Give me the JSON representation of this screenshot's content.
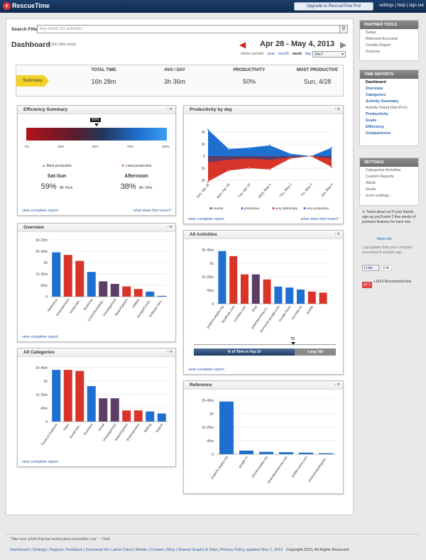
{
  "app": {
    "name": "RescueTime",
    "upgrade": "Upgrade to RescueTime Pro!",
    "toplinks": "settings | help | sign out"
  },
  "search": {
    "label": "Search Filter",
    "placeholder": "key words for activities"
  },
  "dashboard": {
    "title": "Dashboard",
    "subtitle": "(16h 28m total)",
    "date_range": "Apr 28 - May 4, 2013",
    "show_current": "show current:",
    "periods": [
      "year",
      "month",
      "week",
      "day"
    ],
    "range": "24x7"
  },
  "summary": {
    "tag": "Summary",
    "headers": [
      "TOTAL TIME",
      "AVG / DAY",
      "PRODUCTIVITY",
      "MOST PRODUCTIVE"
    ],
    "values": [
      "16h 28m",
      "3h 36m",
      "50%",
      "Sun, 4/28"
    ]
  },
  "efficiency": {
    "title": "Efficiency Summary",
    "marker": "50%",
    "ticks": [
      "0%",
      "25%",
      "50%",
      "75%",
      "100%"
    ],
    "most_label": "Most productive",
    "least_label": "Least productive",
    "most_day": "Sat-Sun",
    "most_pct": "59%",
    "most_time": "8h 41m",
    "least_day": "Afternoon",
    "least_pct": "38%",
    "least_time": "8h 16m",
    "foot": "view complete report",
    "foot2": "what does this mean?"
  },
  "productivity": {
    "title": "Productivity by day",
    "legend": [
      "neutral",
      "productive",
      "very distracting",
      "very productive"
    ],
    "foot": "view complete report",
    "foot2": "what does this mean?"
  },
  "overview": {
    "title": "Overview",
    "foot": "view complete report"
  },
  "categories": {
    "title": "All Categories",
    "foot": "view complete report"
  },
  "activities": {
    "title": "All Activities",
    "top10": "% of Time in Top 10",
    "long_tail": "Long Tail",
    "marker": "72",
    "ticks": [
      "0",
      "25",
      "50",
      "75",
      "100"
    ],
    "foot": "view complete report"
  },
  "reference": {
    "title": "Reference"
  },
  "sidebar": {
    "partner_title": "PARTNER TOOLS",
    "partner": [
      "Setup",
      "Referred Accounts",
      "Credits Report",
      "Invoices"
    ],
    "reports_title": "TIME REPORTS",
    "reports": [
      "Dashboard",
      "Overview",
      "Categories",
      "Activity Summary",
      "Activity Detail (Get Pro!)",
      "Productivity",
      "Goals",
      "Efficiency",
      "Comparisons"
    ],
    "settings_title": "SETTINGS",
    "settings": [
      "Categorize Activities",
      "Custom Reports",
      "Alerts",
      "Goals",
      "more settings..."
    ],
    "tweet": "Tweet about us! If your friends sign up you'll earn 2 free weeks of premium features for each one.",
    "more_info": "More info",
    "updated": "Last update from your computer processed 8 minutes ago.",
    "like": "Like",
    "like_count": "3.3k",
    "gplus_count": "+1914",
    "recommend": "Recommend this"
  },
  "footer": {
    "quote": "\"Take rest; a field that has rested gives a bountiful crop.\" ~ Ovid",
    "links": "Dashboard | Settings | Support, Feedback | Download the Latest Client | Mobile | Contact | Blog | Shared Graphs & Data | Privacy Policy updated May 1, 2013",
    "copyright": "Copyright 2013, All Rights Reserved"
  },
  "colors": {
    "vp": "#1f6fd1",
    "p": "#1f6fd1",
    "n": "#5b3d66",
    "d": "#d8342a",
    "vd": "#c8281f"
  },
  "chart_data": [
    {
      "id": "overview",
      "type": "bar",
      "title": "Overview",
      "categories": [
        "Reference",
        "Entertainment",
        "Social Net...",
        "Business",
        "Comm/Schedule...",
        "Uncategorized",
        "News/Opinion",
        "Utilities",
        "Design/Comp...",
        "Software Dev..."
      ],
      "values": [
        2.6,
        2.45,
        2.1,
        1.45,
        0.9,
        0.75,
        0.6,
        0.45,
        0.3,
        0.05
      ],
      "classes": [
        "vp",
        "d",
        "d",
        "vp",
        "n",
        "n",
        "d",
        "d",
        "vp",
        "vp"
      ],
      "ylabels": [
        "0",
        "40m",
        "1h 20m",
        "2h",
        "2h 40m",
        "3h 20m"
      ],
      "ymax": 3.33
    },
    {
      "id": "categories",
      "type": "bar",
      "title": "All Categories",
      "categories": [
        "Travel & Outdoors",
        "Video",
        "Social Net...",
        "Business",
        "Email",
        "Uncategorized",
        "News/Opinion",
        "Entertainment",
        "Writing",
        "Search"
      ],
      "values": [
        2.55,
        2.55,
        2.5,
        1.75,
        1.15,
        1.15,
        0.55,
        0.55,
        0.5,
        0.4
      ],
      "classes": [
        "vp",
        "d",
        "d",
        "vp",
        "n",
        "n",
        "d",
        "d",
        "vp",
        "vp"
      ],
      "ylabels": [
        "0",
        "40m",
        "1h 20m",
        "2h",
        "2h 40m"
      ],
      "ymax": 2.8
    },
    {
      "id": "activities",
      "type": "bar",
      "title": "All Activities",
      "categories": [
        "projects.aegea.org",
        "facebook.com",
        "youtube.com",
        "iPad",
        "powerlearning.co...",
        "economic.google.com",
        "Google Docs",
        "rezonde.ch",
        "spotify",
        ""
      ],
      "values": [
        2.6,
        2.35,
        1.45,
        1.45,
        1.2,
        0.85,
        0.8,
        0.7,
        0.6,
        0.55
      ],
      "classes": [
        "vp",
        "d",
        "d",
        "n",
        "d",
        "vp",
        "vp",
        "vp",
        "d",
        "d"
      ],
      "ylabels": [
        "0",
        "40m",
        "1h 20m",
        "2h",
        "2h 40m"
      ],
      "ymax": 2.8
    },
    {
      "id": "reference",
      "type": "bar",
      "title": "Reference",
      "categories": [
        "projects.aegea.org",
        "google.ro",
        "citrexw.aegea.org",
        "clinbrakeobservat.com",
        "seattle-wave.com",
        "evolutionarylinguist..."
      ],
      "values": [
        2.6,
        0.18,
        0.12,
        0.1,
        0.08,
        0.05
      ],
      "classes": [
        "vp",
        "vp",
        "vp",
        "vp",
        "vp",
        "vp"
      ],
      "ylabels": [
        "0",
        "40m",
        "1h 20m",
        "2h",
        "2h 40m"
      ],
      "ymax": 2.8
    },
    {
      "id": "productivity",
      "type": "area",
      "title": "Productivity by day",
      "x": [
        "Sun, Apr 28",
        "Mon, Apr 29",
        "Tue, Apr 30",
        "Wed, May 1",
        "Thu, May 2",
        "Fri, May 3",
        "Sat, May 4"
      ],
      "ylabels": [
        "2h",
        "1h",
        "0",
        "1h",
        "2h"
      ],
      "series": [
        {
          "name": "very productive",
          "values": [
            2.2,
            0.6,
            0.7,
            0.9,
            0.2,
            0,
            0.7
          ]
        },
        {
          "name": "very distracting",
          "values": [
            -2.1,
            -1.2,
            -1.0,
            -1.1,
            -0.2,
            0,
            -0.9
          ]
        },
        {
          "name": "neutral",
          "values": [
            -0.5,
            -0.3,
            -0.2,
            -0.3,
            -0.1,
            0,
            -0.2
          ]
        }
      ]
    }
  ]
}
